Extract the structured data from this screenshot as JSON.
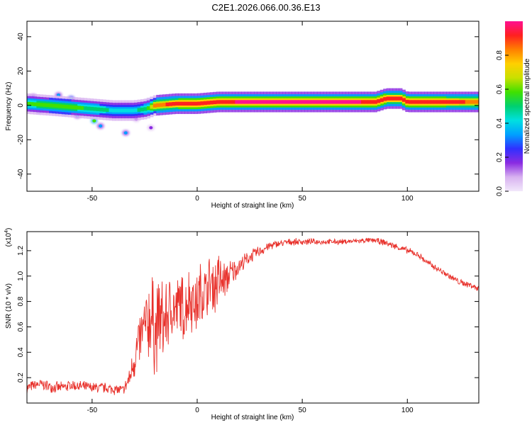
{
  "title": "C2E1.2026.066.00.36.E13",
  "colors": {
    "snr_line": "#e8312b",
    "colorscale": [
      "#f2e8fb",
      "#d8b2f0",
      "#8a2be2",
      "#3030ff",
      "#00a0ff",
      "#00e0e0",
      "#00d070",
      "#40e000",
      "#c8e000",
      "#ffd000",
      "#ff8000",
      "#ff2020",
      "#ff1090"
    ]
  },
  "chart_data": [
    {
      "type": "heatmap",
      "name": "spectrogram",
      "title": "",
      "xlabel": "Height of straight line (km)",
      "ylabel": "Frequency (Hz)",
      "xlim": [
        -81,
        134
      ],
      "ylim": [
        -50,
        49
      ],
      "xticks": [
        -50,
        0,
        50,
        100
      ],
      "yticks": [
        -40,
        -20,
        0,
        20,
        40
      ],
      "colorbar": {
        "label": "Normalized spectral amplitude",
        "range": [
          0,
          1
        ],
        "ticks": [
          0.0,
          0.2,
          0.4,
          0.6,
          0.8
        ]
      },
      "ridge": {
        "description": "dominant frequency vs height",
        "x": [
          -81,
          -70,
          -60,
          -50,
          -40,
          -30,
          -24,
          -20,
          -10,
          0,
          10,
          30,
          60,
          85,
          90,
          97,
          100,
          120,
          134
        ],
        "freq_hz": [
          1,
          0,
          -1,
          -2,
          -3,
          -3,
          -2,
          0,
          1,
          1,
          2,
          2,
          2,
          2,
          4,
          4,
          2,
          2,
          2
        ],
        "peak_amplitude": [
          0.55,
          0.6,
          0.6,
          0.5,
          0.45,
          0.45,
          0.5,
          0.85,
          0.9,
          0.95,
          0.95,
          0.97,
          0.98,
          0.95,
          0.9,
          0.9,
          0.95,
          0.9,
          0.85
        ]
      },
      "blobs": [
        {
          "x": -78,
          "y": 5,
          "a": 0.25
        },
        {
          "x": -75,
          "y": -3,
          "a": 0.35
        },
        {
          "x": -72,
          "y": 2,
          "a": 0.6
        },
        {
          "x": -68,
          "y": -2,
          "a": 0.5
        },
        {
          "x": -66,
          "y": 6,
          "a": 0.3
        },
        {
          "x": -63,
          "y": -4,
          "a": 0.55
        },
        {
          "x": -60,
          "y": 4,
          "a": 0.45
        },
        {
          "x": -57,
          "y": -6,
          "a": 0.3
        },
        {
          "x": -55,
          "y": 1,
          "a": 0.5
        },
        {
          "x": -52,
          "y": -3,
          "a": 0.55
        },
        {
          "x": -49,
          "y": -9,
          "a": 0.55
        },
        {
          "x": -46,
          "y": -12,
          "a": 0.3
        },
        {
          "x": -44,
          "y": -2,
          "a": 0.5
        },
        {
          "x": -40,
          "y": -5,
          "a": 0.45
        },
        {
          "x": -36,
          "y": -1,
          "a": 0.35
        },
        {
          "x": -34,
          "y": -16,
          "a": 0.3
        },
        {
          "x": -32,
          "y": -4,
          "a": 0.6
        },
        {
          "x": -29,
          "y": -8,
          "a": 0.2
        },
        {
          "x": -26,
          "y": -2,
          "a": 0.55
        },
        {
          "x": -23,
          "y": 2,
          "a": 0.4
        },
        {
          "x": -22,
          "y": -13,
          "a": 0.15
        }
      ]
    },
    {
      "type": "line",
      "name": "snr",
      "title": "",
      "xlabel": "Height of straight line (km)",
      "ylabel": "SNR (10 * v/v)",
      "y_multiplier": "(x10^4)",
      "y_multiplier_base": "(x10",
      "y_multiplier_exp": "4",
      "y_multiplier_close": ")",
      "xlim": [
        -81,
        134
      ],
      "ylim": [
        0,
        1.35
      ],
      "xticks": [
        -50,
        0,
        50,
        100
      ],
      "yticks": [
        0.2,
        0.4,
        0.6,
        0.8,
        1.0,
        1.2
      ],
      "series": [
        {
          "name": "SNR",
          "x": [
            -81,
            -75,
            -70,
            -65,
            -60,
            -55,
            -50,
            -45,
            -40,
            -35,
            -32,
            -30,
            -28,
            -26,
            -24,
            -22,
            -20,
            -18,
            -16,
            -14,
            -12,
            -10,
            -8,
            -6,
            -4,
            -2,
            0,
            2,
            4,
            6,
            8,
            10,
            12,
            15,
            18,
            20,
            25,
            30,
            35,
            40,
            45,
            50,
            60,
            70,
            80,
            85,
            90,
            95,
            100,
            105,
            110,
            115,
            120,
            125,
            130,
            134
          ],
          "values": [
            0.12,
            0.15,
            0.13,
            0.12,
            0.14,
            0.13,
            0.12,
            0.12,
            0.11,
            0.1,
            0.2,
            0.35,
            0.45,
            0.55,
            0.6,
            0.7,
            0.55,
            0.68,
            0.62,
            0.7,
            0.75,
            0.72,
            0.8,
            0.7,
            0.85,
            0.8,
            0.78,
            0.9,
            0.85,
            0.95,
            0.92,
            0.98,
            0.95,
            1.0,
            1.05,
            1.08,
            1.15,
            1.2,
            1.24,
            1.26,
            1.27,
            1.27,
            1.27,
            1.27,
            1.28,
            1.28,
            1.26,
            1.23,
            1.2,
            1.17,
            1.1,
            1.05,
            1.0,
            0.95,
            0.93,
            0.9
          ],
          "noise_amplitude": [
            0.05,
            0.05,
            0.05,
            0.05,
            0.05,
            0.05,
            0.05,
            0.05,
            0.05,
            0.05,
            0.1,
            0.2,
            0.25,
            0.3,
            0.35,
            0.45,
            0.4,
            0.4,
            0.35,
            0.35,
            0.3,
            0.3,
            0.3,
            0.3,
            0.3,
            0.28,
            0.28,
            0.3,
            0.28,
            0.25,
            0.25,
            0.3,
            0.2,
            0.15,
            0.1,
            0.08,
            0.06,
            0.05,
            0.04,
            0.03,
            0.03,
            0.03,
            0.025,
            0.025,
            0.025,
            0.025,
            0.03,
            0.03,
            0.03,
            0.03,
            0.03,
            0.03,
            0.03,
            0.03,
            0.03,
            0.03
          ]
        }
      ]
    }
  ]
}
